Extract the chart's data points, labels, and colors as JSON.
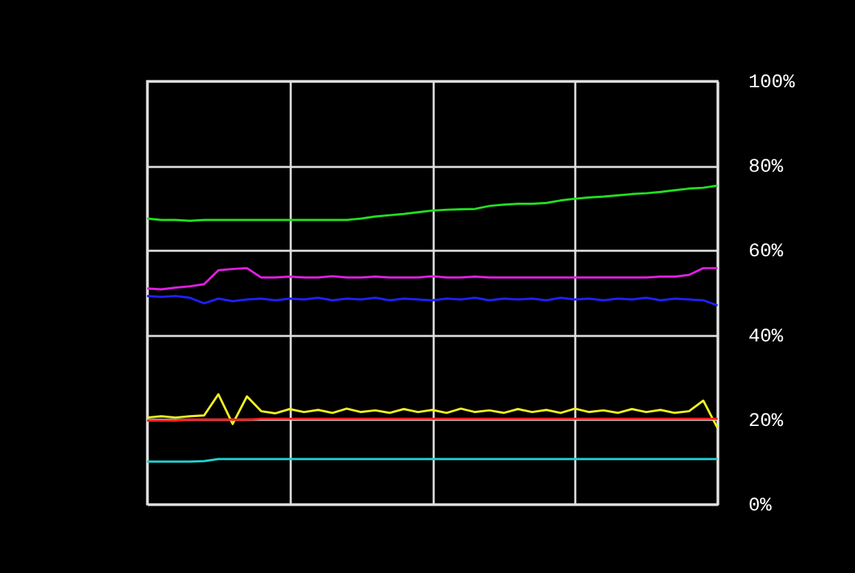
{
  "chart_data": {
    "type": "line",
    "categories": [
      null,
      null,
      null,
      null,
      null,
      null,
      null,
      null,
      null,
      null,
      null,
      null,
      null,
      null,
      null,
      null,
      null,
      null,
      null,
      null,
      null,
      null,
      null,
      null,
      null,
      null,
      null,
      null,
      null,
      null,
      null,
      null,
      null,
      null,
      null,
      null,
      null,
      null,
      null,
      null,
      null
    ],
    "series": [
      {
        "color": "#22dd22",
        "values": [
          67.5,
          67.2,
          67.2,
          67,
          67.2,
          67.2,
          67.2,
          67.2,
          67.2,
          67.2,
          67.2,
          67.2,
          67.2,
          67.2,
          67.2,
          67.5,
          68,
          68.3,
          68.6,
          69,
          69.4,
          69.6,
          69.7,
          69.8,
          70.5,
          70.8,
          71,
          71,
          71.2,
          71.8,
          72.2,
          72.5,
          72.7,
          73,
          73.3,
          73.5,
          73.8,
          74.2,
          74.6,
          74.8,
          75.3
        ]
      },
      {
        "color": "#e020e0",
        "values": [
          51,
          50.8,
          51.2,
          51.5,
          52,
          55.3,
          55.6,
          55.8,
          53.6,
          53.6,
          53.8,
          53.6,
          53.6,
          53.9,
          53.6,
          53.6,
          53.8,
          53.6,
          53.6,
          53.6,
          53.9,
          53.6,
          53.6,
          53.8,
          53.6,
          53.6,
          53.6,
          53.6,
          53.6,
          53.6,
          53.6,
          53.6,
          53.6,
          53.6,
          53.6,
          53.6,
          53.8,
          53.8,
          54.2,
          55.8,
          55.8
        ]
      },
      {
        "color": "#2020ff",
        "values": [
          49.2,
          49,
          49.2,
          48.8,
          47.5,
          48.6,
          48,
          48.4,
          48.6,
          48.2,
          48.6,
          48.4,
          48.8,
          48.2,
          48.6,
          48.4,
          48.8,
          48.2,
          48.6,
          48.4,
          48.2,
          48.6,
          48.4,
          48.8,
          48.2,
          48.6,
          48.4,
          48.6,
          48.2,
          48.8,
          48.4,
          48.6,
          48.2,
          48.6,
          48.4,
          48.8,
          48.2,
          48.6,
          48.4,
          48.2,
          47
        ]
      },
      {
        "color": "#f0f020",
        "values": [
          20.5,
          20.8,
          20.5,
          20.8,
          21,
          26,
          19,
          25.5,
          22,
          21.5,
          22.5,
          21.8,
          22.3,
          21.6,
          22.6,
          21.8,
          22.2,
          21.6,
          22.5,
          21.8,
          22.3,
          21.6,
          22.6,
          21.8,
          22.2,
          21.6,
          22.5,
          21.8,
          22.3,
          21.6,
          22.6,
          21.8,
          22.2,
          21.6,
          22.5,
          21.8,
          22.3,
          21.6,
          22,
          24.5,
          18
        ]
      },
      {
        "color": "#ff2020",
        "values": [
          19.8,
          19.8,
          19.8,
          20,
          20,
          20,
          20,
          20,
          20.2,
          20.2,
          20.2,
          20.2,
          20.2,
          20.2,
          20.2,
          20.2,
          20.2,
          20.2,
          20.2,
          20.2,
          20.2,
          20.2,
          20.2,
          20.2,
          20.2,
          20.2,
          20.2,
          20.2,
          20.2,
          20.2,
          20.2,
          20.2,
          20.2,
          20.2,
          20.2,
          20.2,
          20.2,
          20.2,
          20.2,
          20.2,
          20.2
        ]
      },
      {
        "color": "#20d0d0",
        "values": [
          10.1,
          10.1,
          10.1,
          10.1,
          10.2,
          10.7,
          10.7,
          10.7,
          10.7,
          10.7,
          10.7,
          10.7,
          10.7,
          10.7,
          10.7,
          10.7,
          10.7,
          10.7,
          10.7,
          10.7,
          10.7,
          10.7,
          10.7,
          10.7,
          10.7,
          10.7,
          10.7,
          10.7,
          10.7,
          10.7,
          10.7,
          10.7,
          10.7,
          10.7,
          10.7,
          10.7,
          10.7,
          10.7,
          10.7,
          10.7,
          10.7
        ]
      }
    ],
    "ylim": [
      0,
      100
    ],
    "yticks": [
      {
        "value": 0,
        "label": "0%"
      },
      {
        "value": 20,
        "label": "20%"
      },
      {
        "value": 40,
        "label": "40%"
      },
      {
        "value": 60,
        "label": "60%"
      },
      {
        "value": 80,
        "label": "80%"
      },
      {
        "value": 100,
        "label": "100%"
      }
    ],
    "grid": true,
    "tick_labels": "y",
    "marker": "none",
    "line_style": "solid"
  }
}
